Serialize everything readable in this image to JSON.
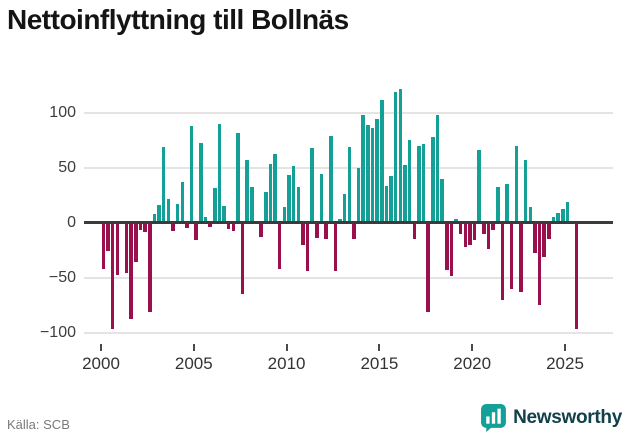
{
  "header": {
    "title": "Nettoinflyttning till Bollnäs"
  },
  "chart_data": {
    "type": "bar",
    "title": "Nettoinflyttning till Bollnäs",
    "frequency": "quarterly",
    "x_tick_labels": [
      "2000",
      "2005",
      "2010",
      "2015",
      "2020",
      "2025"
    ],
    "y_ticks": [
      100,
      50,
      0,
      -50,
      -100
    ],
    "y_tick_labels": [
      "100",
      "50",
      "0",
      "−50",
      "−100"
    ],
    "ylim": [
      -105,
      125
    ],
    "grid": "horizontal",
    "legend": "none",
    "colors": {
      "positive": "#14a096",
      "negative": "#99104d"
    },
    "series": [
      {
        "year": 2000,
        "values": [
          -42,
          -26,
          -97,
          -48
        ]
      },
      {
        "year": 2001,
        "values": [
          0,
          -46,
          -88,
          -36
        ]
      },
      {
        "year": 2002,
        "values": [
          -7,
          -9,
          -81,
          8
        ]
      },
      {
        "year": 2003,
        "values": [
          16,
          69,
          21,
          -8
        ]
      },
      {
        "year": 2004,
        "values": [
          17,
          37,
          -5,
          88
        ]
      },
      {
        "year": 2005,
        "values": [
          -16,
          72,
          5,
          -4
        ]
      },
      {
        "year": 2006,
        "values": [
          31,
          90,
          15,
          -6
        ]
      },
      {
        "year": 2007,
        "values": [
          -8,
          81,
          -65,
          57
        ]
      },
      {
        "year": 2008,
        "values": [
          32,
          0,
          -13,
          28
        ]
      },
      {
        "year": 2009,
        "values": [
          53,
          62,
          -42,
          14
        ]
      },
      {
        "year": 2010,
        "values": [
          43,
          51,
          32,
          -20
        ]
      },
      {
        "year": 2011,
        "values": [
          -44,
          68,
          -14,
          44
        ]
      },
      {
        "year": 2012,
        "values": [
          -15,
          79,
          -44,
          3
        ]
      },
      {
        "year": 2013,
        "values": [
          26,
          69,
          -15,
          50
        ]
      },
      {
        "year": 2014,
        "values": [
          98,
          89,
          86,
          94
        ]
      },
      {
        "year": 2015,
        "values": [
          111,
          33,
          42,
          119
        ]
      },
      {
        "year": 2016,
        "values": [
          121,
          52,
          75,
          -15
        ]
      },
      {
        "year": 2017,
        "values": [
          70,
          71,
          -81,
          78
        ]
      },
      {
        "year": 2018,
        "values": [
          98,
          40,
          -43,
          -49
        ]
      },
      {
        "year": 2019,
        "values": [
          3,
          -10,
          -22,
          -20
        ]
      },
      {
        "year": 2020,
        "values": [
          -16,
          66,
          -10,
          -24
        ]
      },
      {
        "year": 2021,
        "values": [
          -7,
          32,
          -70,
          35
        ]
      },
      {
        "year": 2022,
        "values": [
          -60,
          70,
          -63,
          57
        ]
      },
      {
        "year": 2023,
        "values": [
          14,
          -28,
          -75,
          -31
        ]
      },
      {
        "year": 2024,
        "values": [
          -15,
          5,
          9,
          12
        ]
      },
      {
        "year": 2025,
        "values": [
          19,
          0,
          -97
        ]
      }
    ]
  },
  "footer": {
    "source": "Källa: SCB",
    "brand": "Newsworthy"
  }
}
